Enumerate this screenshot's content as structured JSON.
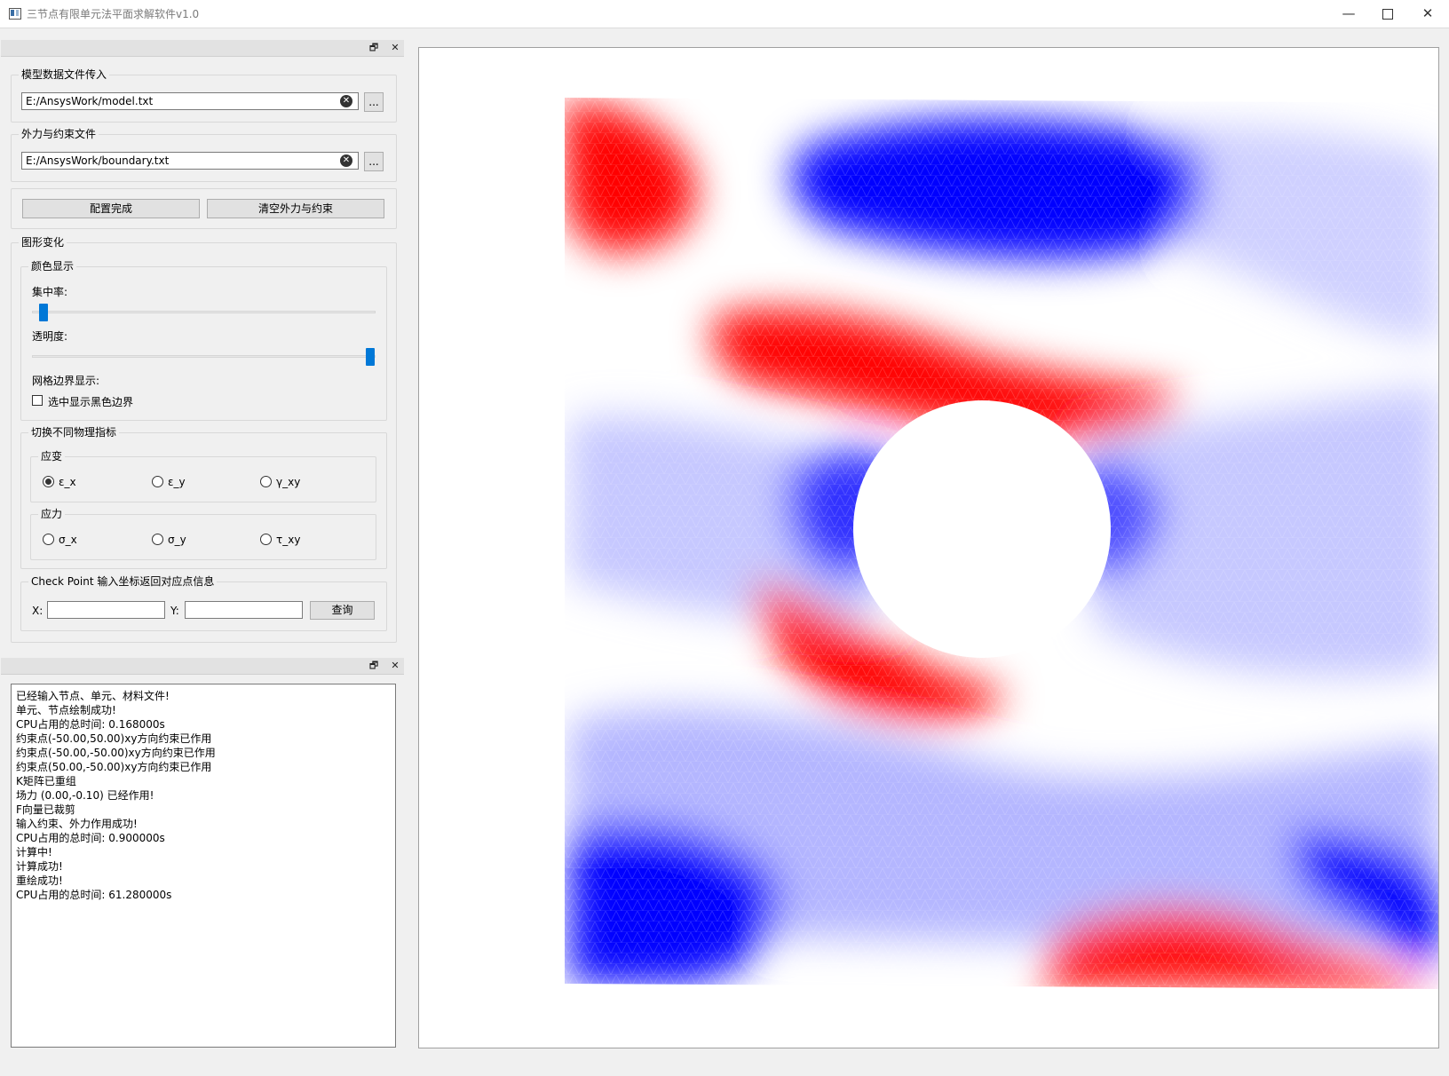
{
  "window": {
    "title": "三节点有限单元法平面求解软件v1.0",
    "minimize": "—",
    "maximize": "",
    "close": "✕"
  },
  "dock_buttons": {
    "float": "🗗",
    "close": "✕"
  },
  "file_input": {
    "model_title": "模型数据文件传入",
    "model_path": "E:/AnsysWork/model.txt",
    "boundary_title": "外力与约束文件",
    "boundary_path": "E:/AnsysWork/boundary.txt",
    "browse_label": "...",
    "clear_icon": "clear-icon"
  },
  "actions": {
    "config_done": "配置完成",
    "clear_forces": "清空外力与约束"
  },
  "graphics": {
    "title": "图形变化",
    "color_title": "颜色显示",
    "concentration_label": "集中率:",
    "concentration_value": 0.03,
    "transparency_label": "透明度:",
    "transparency_value": 1.0,
    "grid_label": "网格边界显示:",
    "grid_checkbox_label": "选中显示黑色边界",
    "grid_checked": false
  },
  "physics": {
    "title": "切换不同物理指标",
    "strain_title": "应变",
    "strain_options": [
      "ε_x",
      "ε_y",
      "γ_xy"
    ],
    "stress_title": "应力",
    "stress_options": [
      "σ_x",
      "σ_y",
      "τ_xy"
    ],
    "selected": "ε_x"
  },
  "check_point": {
    "title": "Check Point 输入坐标返回对应点信息",
    "x_label": "X:",
    "y_label": "Y:",
    "x_value": "",
    "y_value": "",
    "query_label": "查询"
  },
  "log": [
    "已经输入节点、单元、材料文件!",
    "单元、节点绘制成功!",
    "CPU占用的总时间: 0.168000s",
    "约束点(-50.00,50.00)xy方向约束已作用",
    "约束点(-50.00,-50.00)xy方向约束已作用",
    "约束点(50.00,-50.00)xy方向约束已作用",
    "K矩阵已重组",
    "场力 (0.00,-0.10) 已经作用!",
    "F向量已裁剪",
    "输入约束、外力作用成功!",
    "CPU占用的总时间: 0.900000s",
    "计算中!",
    "计算成功!",
    "重绘成功!",
    "CPU占用的总时间: 61.280000s"
  ],
  "colors": {
    "positive": "#ff0000",
    "negative": "#0000ff",
    "neutral": "#ffffff",
    "accent": "#0078d7"
  }
}
